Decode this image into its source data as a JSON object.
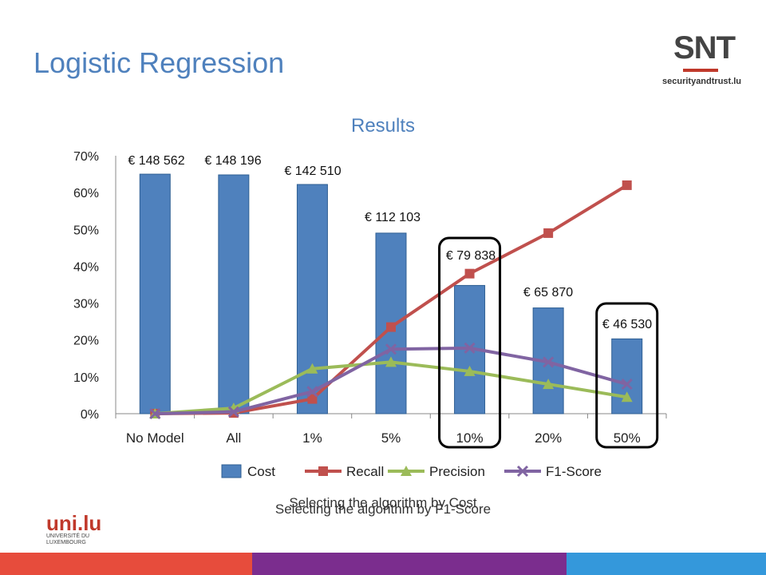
{
  "slide": {
    "title": "Logistic Regression",
    "caption_cost": "Selecting the algorithm by Cost",
    "caption_f1": "Selecting the algorithm by F1-Score"
  },
  "logos": {
    "snt_mark": "SNT",
    "snt_text": "securityandtrust.lu",
    "uni_mark": "uni.lu",
    "uni_text_1": "UNIVERSITÉ DU",
    "uni_text_2": "LUXEMBOURG"
  },
  "colors": {
    "title": "#4f81bd",
    "cost": "#4f81bd",
    "recall": "#c0504d",
    "precision": "#9bbb59",
    "f1": "#8064a2",
    "footer_red": "#e74c3c",
    "footer_purple": "#7b2d8e",
    "footer_blue": "#3498db"
  },
  "chart_data": {
    "type": "bar",
    "title": "Results",
    "categories": [
      "No Model",
      "All",
      "1%",
      "5%",
      "10%",
      "20%",
      "50%"
    ],
    "ylim": [
      0,
      70
    ],
    "yticks": [
      "0%",
      "10%",
      "20%",
      "30%",
      "40%",
      "50%",
      "60%",
      "70%"
    ],
    "legend_position": "bottom",
    "series": [
      {
        "name": "Cost",
        "kind": "bar",
        "values": [
          65,
          64.8,
          62.2,
          49,
          34.8,
          28.7,
          20.3
        ],
        "labels": [
          "€ 148 562",
          "€ 148 196",
          "€ 142 510",
          "€ 112 103",
          "€ 79 838",
          "€ 65 870",
          "€ 46 530"
        ]
      },
      {
        "name": "Recall",
        "kind": "line",
        "marker": "square",
        "values": [
          0,
          0.2,
          4,
          23.5,
          38,
          49,
          62
        ]
      },
      {
        "name": "Precision",
        "kind": "line",
        "marker": "triangle",
        "values": [
          0,
          1.5,
          12.2,
          14,
          11.5,
          8,
          4.5
        ]
      },
      {
        "name": "F1-Score",
        "kind": "line",
        "marker": "x",
        "values": [
          0,
          0.5,
          6,
          17.5,
          17.8,
          14,
          8
        ]
      }
    ],
    "highlighted_categories": [
      "10%",
      "50%"
    ]
  }
}
